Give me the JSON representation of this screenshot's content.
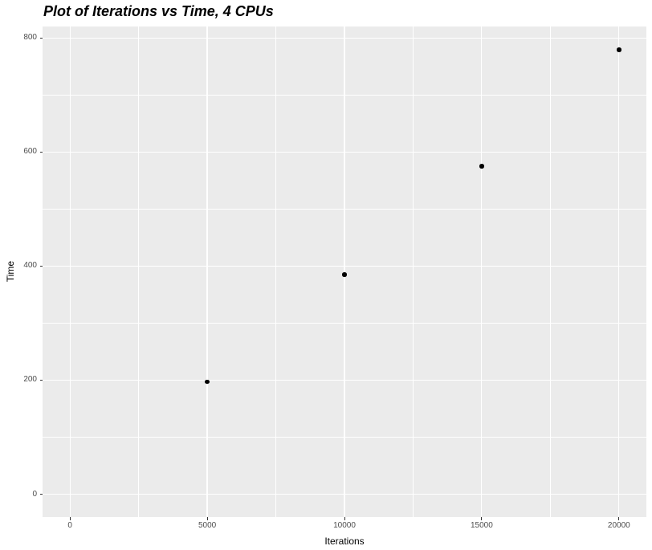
{
  "chart_data": {
    "type": "scatter",
    "title": "Plot of Iterations vs Time, 4 CPUs",
    "xlabel": "Iterations",
    "ylabel": "Time",
    "points": [
      {
        "x": 5000,
        "y": 197
      },
      {
        "x": 10000,
        "y": 385
      },
      {
        "x": 15000,
        "y": 575
      },
      {
        "x": 20000,
        "y": 779
      }
    ],
    "x_ticks": [
      0,
      5000,
      10000,
      15000,
      20000
    ],
    "x_tick_labels": [
      "0",
      "5000",
      "10000",
      "15000",
      "20000"
    ],
    "y_ticks": [
      0,
      200,
      400,
      600,
      800
    ],
    "y_tick_labels": [
      "0",
      "200",
      "400",
      "600",
      "800"
    ],
    "x_minor_ticks": [
      2500,
      7500,
      12500,
      17500
    ],
    "y_minor_ticks": [
      100,
      300,
      500,
      700
    ],
    "xlim": [
      -1000,
      21000
    ],
    "ylim": [
      -40,
      820
    ],
    "grid": "major-and-minor",
    "legend_position": "none",
    "style": {
      "panel_background": "#EBEBEB",
      "grid_color": "#FFFFFF",
      "point_color": "#000000",
      "tick_label_color": "#4D4D4D",
      "tick_mark_color": "#333333",
      "axis_title_color": "#000000",
      "title_color": "#000000",
      "figure_background": "#FFFFFF"
    }
  }
}
